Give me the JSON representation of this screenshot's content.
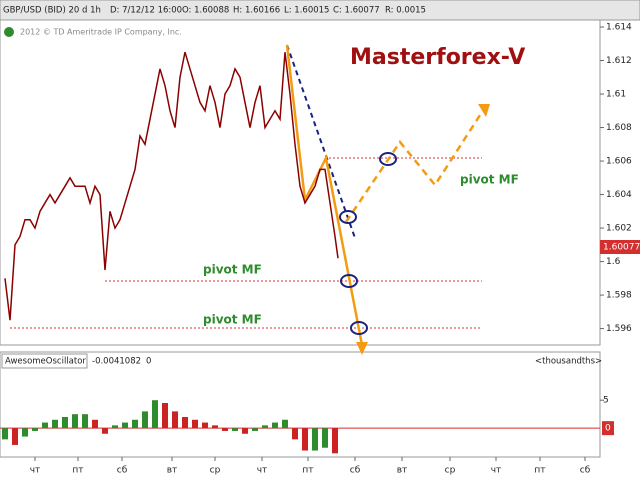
{
  "header": {
    "symbol": "GBP/USD (BID) 20 d 1h",
    "date": "D: 7/12/12 16:00",
    "open": "O: 1.60088",
    "high": "H: 1.60166",
    "low": "L: 1.60015",
    "close": "C: 1.60077",
    "range": "R: 0.0015",
    "copyright": "2012 © TD Ameritrade IP Company, Inc.",
    "brand": "Masterforex-V"
  },
  "chart_data": [
    {
      "type": "line",
      "color": "#8b0000",
      "x": [
        5,
        10,
        15,
        20,
        25,
        30,
        35,
        40,
        45,
        50,
        55,
        60,
        65,
        70,
        75,
        80,
        85,
        90,
        95,
        100,
        105,
        110,
        115,
        120,
        125,
        130,
        135,
        140,
        145,
        150,
        155,
        160,
        165,
        170,
        175,
        180,
        185,
        190,
        195,
        200,
        205,
        210,
        215,
        220,
        225,
        230,
        235,
        240,
        245,
        250,
        255,
        260,
        265,
        270,
        275,
        280,
        285,
        290,
        295,
        300,
        305,
        310,
        315,
        320,
        325,
        330,
        335,
        338
      ],
      "values": [
        1.599,
        1.5965,
        1.601,
        1.6015,
        1.6025,
        1.6025,
        1.602,
        1.603,
        1.6035,
        1.604,
        1.6035,
        1.604,
        1.6045,
        1.605,
        1.6045,
        1.6045,
        1.6045,
        1.6035,
        1.6045,
        1.604,
        1.5995,
        1.603,
        1.602,
        1.6025,
        1.6035,
        1.6045,
        1.6055,
        1.6075,
        1.607,
        1.6085,
        1.61,
        1.6115,
        1.6105,
        1.609,
        1.608,
        1.611,
        1.6125,
        1.6115,
        1.6105,
        1.6095,
        1.609,
        1.6105,
        1.6095,
        1.608,
        1.61,
        1.6105,
        1.6115,
        1.611,
        1.6095,
        1.608,
        1.6095,
        1.6105,
        1.608,
        1.6085,
        1.609,
        1.6085,
        1.6125,
        1.61,
        1.607,
        1.6045,
        1.6035,
        1.604,
        1.6045,
        1.6055,
        1.6055,
        1.6035,
        1.6015,
        1.6002
      ],
      "xlim": [
        0,
        600
      ],
      "ylim": [
        1.5952,
        1.6143
      ],
      "yticks": [
        1.596,
        1.598,
        1.6,
        1.602,
        1.604,
        1.606,
        1.608,
        1.61,
        1.612,
        1.614
      ],
      "last_label": "1.60077",
      "annotations": [
        "pivot MF",
        "pivot MF",
        "pivot MF"
      ]
    },
    {
      "type": "bar",
      "up_color": "#2e8b2e",
      "down_color": "#cc2222",
      "title": "AwesomeOscillator",
      "value_text": "-0.0041082",
      "flag": "0",
      "units": "<thousandths>",
      "x": [
        5,
        15,
        25,
        35,
        45,
        55,
        65,
        75,
        85,
        95,
        105,
        115,
        125,
        135,
        145,
        155,
        165,
        175,
        185,
        195,
        205,
        215,
        225,
        235,
        245,
        255,
        265,
        275,
        285,
        295,
        305,
        315,
        325,
        335
      ],
      "values": [
        -2,
        -3,
        -1.5,
        -0.5,
        1,
        1.5,
        2,
        2.5,
        2.5,
        1.5,
        -1,
        0.5,
        1,
        1.5,
        3,
        5,
        4.5,
        3,
        2,
        1.5,
        1,
        0.5,
        -0.5,
        -0.5,
        -1,
        -0.5,
        0.5,
        1,
        1.5,
        -2,
        -4,
        -4,
        -3.5,
        -4.5
      ],
      "xlim": [
        0,
        600
      ],
      "ylim": [
        -4.8,
        10.4
      ],
      "yticks": [
        0,
        5
      ],
      "xticks": [
        {
          "value": 35,
          "label": "чт"
        },
        {
          "value": 78,
          "label": "пт"
        },
        {
          "value": 122,
          "label": "сб"
        },
        {
          "value": 172,
          "label": "вт"
        },
        {
          "value": 215,
          "label": "ср"
        },
        {
          "value": 262,
          "label": "чт"
        },
        {
          "value": 308,
          "label": "пт"
        },
        {
          "value": 355,
          "label": "сб"
        },
        {
          "value": 402,
          "label": "вт"
        },
        {
          "value": 450,
          "label": "ср"
        },
        {
          "value": 496,
          "label": "чт"
        },
        {
          "value": 540,
          "label": "пт"
        },
        {
          "value": 585,
          "label": "сб"
        }
      ]
    }
  ]
}
